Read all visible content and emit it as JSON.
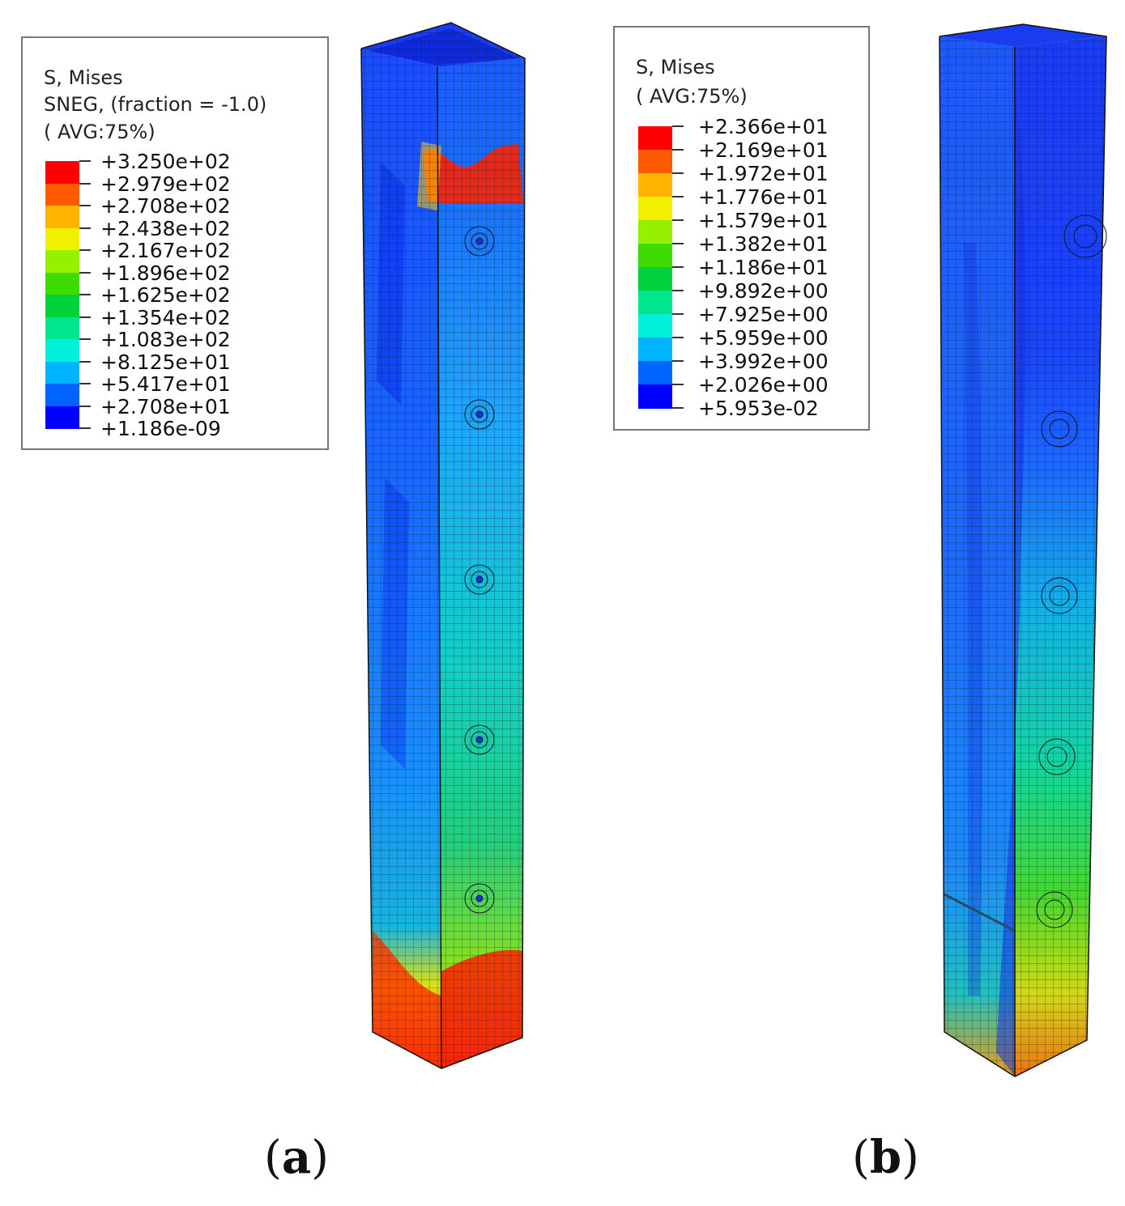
{
  "figure": {
    "a": {
      "legend": {
        "title": "S, Mises",
        "subtitle": "SNEG, (fraction = -1.0)",
        "avg": "(  AVG:75%)",
        "values": [
          "+3.250e+02",
          "+2.979e+02",
          "+2.708e+02",
          "+2.438e+02",
          "+2.167e+02",
          "+1.896e+02",
          "+1.625e+02",
          "+1.354e+02",
          "+1.083e+02",
          "+8.125e+01",
          "+5.417e+01",
          "+2.708e+01",
          "+1.186e-09"
        ]
      },
      "caption_letter": "a"
    },
    "b": {
      "legend": {
        "title": "S, Mises",
        "avg": "(  AVG:75%)",
        "values": [
          "+2.366e+01",
          "+2.169e+01",
          "+1.972e+01",
          "+1.776e+01",
          "+1.579e+01",
          "+1.382e+01",
          "+1.186e+01",
          "+9.892e+00",
          "+7.925e+00",
          "+5.959e+00",
          "+3.992e+00",
          "+2.026e+00",
          "+5.953e-02"
        ]
      },
      "caption_letter": "b"
    },
    "contour_colors": [
      "#ff0000",
      "#ff5a00",
      "#ffb400",
      "#f0f000",
      "#96f000",
      "#3cdc00",
      "#00d23c",
      "#00e68c",
      "#00f0dc",
      "#00b4ff",
      "#0064ff",
      "#0000ff"
    ]
  }
}
